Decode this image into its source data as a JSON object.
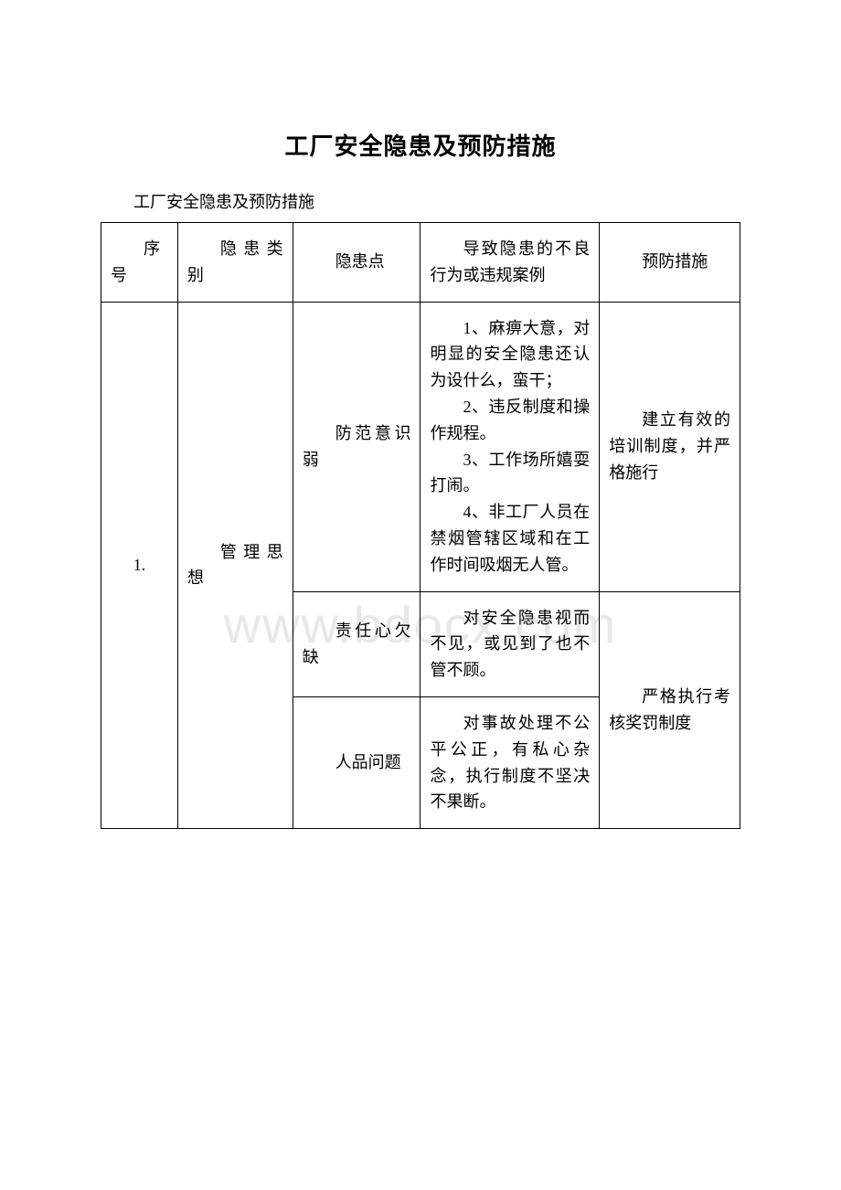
{
  "document": {
    "title": "工厂安全隐患及预防措施",
    "subtitle": "工厂安全隐患及预防措施",
    "watermark": "www.bdocx.com"
  },
  "table": {
    "columns": [
      "序号",
      "隐患类别",
      "隐患点",
      "导致隐患的不良行为或违规案例",
      "预防措施"
    ],
    "column_widths_pct": [
      12,
      18,
      20,
      28,
      22
    ],
    "border_color": "#000000",
    "background_color": "#ffffff",
    "font_size_pt": 18,
    "rows": [
      {
        "seq": "1.",
        "category": "管理思想",
        "points": [
          {
            "point": "防范意识弱",
            "cases": "1、麻痹大意，对明显的安全隐患还认为设什么，蛮干；\n2、违反制度和操作规程。\n3、工作场所嬉耍打闹。\n4、非工厂人员在禁烟管辖区域和在工作时间吸烟无人管。",
            "measure": "建立有效的培训制度，并严格施行"
          },
          {
            "point": "责任心欠缺",
            "cases": "对安全隐患视而不见，或见到了也不管不顾。",
            "measure": "严格执行考核奖罚制度"
          },
          {
            "point": "人品问题",
            "cases": "对事故处理不公平公正，有私心杂念，执行制度不坚决不果断。",
            "measure": "严格执行考核奖罚制度"
          }
        ]
      }
    ]
  }
}
